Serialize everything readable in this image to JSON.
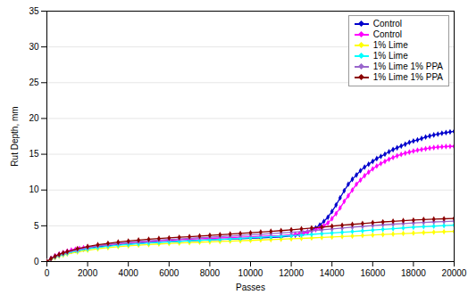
{
  "chart_data": {
    "type": "line",
    "xlabel": "Passes",
    "ylabel": "Rut Depth, mm",
    "xlim": [
      0,
      20000
    ],
    "ylim": [
      0,
      35
    ],
    "xticks": [
      0,
      2000,
      4000,
      6000,
      8000,
      10000,
      12000,
      14000,
      16000,
      18000,
      20000
    ],
    "yticks": [
      0,
      5,
      10,
      15,
      20,
      25,
      30,
      35
    ],
    "grid": "y",
    "legend": "upper right",
    "marker": "diamond",
    "series": [
      {
        "name": "Control",
        "color": "#0000cc",
        "x": [
          0,
          200,
          400,
          600,
          800,
          1000,
          1200,
          1400,
          1600,
          1800,
          2000,
          2500,
          3000,
          3500,
          4000,
          4500,
          5000,
          5500,
          6000,
          6500,
          7000,
          7500,
          8000,
          8500,
          9000,
          9500,
          10000,
          10500,
          11000,
          11500,
          12000,
          12200,
          12400,
          12600,
          12800,
          13000,
          13200,
          13400,
          13600,
          13800,
          14000,
          14200,
          14400,
          14600,
          14800,
          15000,
          15200,
          15400,
          15600,
          15800,
          16000,
          16200,
          16400,
          16600,
          16800,
          17000,
          17200,
          17400,
          17600,
          17800,
          18000,
          18200,
          18400,
          18600,
          18800,
          19000,
          19200,
          19400,
          19600,
          19800,
          20000
        ],
        "values": [
          0,
          0.4,
          0.7,
          0.9,
          1.1,
          1.3,
          1.45,
          1.55,
          1.65,
          1.75,
          1.85,
          2.05,
          2.2,
          2.35,
          2.45,
          2.55,
          2.65,
          2.72,
          2.79,
          2.85,
          2.91,
          2.97,
          3.03,
          3.09,
          3.15,
          3.2,
          3.26,
          3.32,
          3.38,
          3.44,
          3.6,
          3.7,
          3.8,
          3.95,
          4.15,
          4.4,
          4.7,
          5.1,
          5.6,
          6.2,
          7.0,
          7.9,
          8.9,
          9.9,
          10.8,
          11.5,
          12.1,
          12.7,
          13.2,
          13.6,
          14.0,
          14.4,
          14.7,
          15.0,
          15.35,
          15.65,
          15.9,
          16.15,
          16.4,
          16.65,
          16.85,
          17.0,
          17.2,
          17.4,
          17.55,
          17.7,
          17.82,
          17.93,
          18.03,
          18.12,
          18.2
        ]
      },
      {
        "name": "Control",
        "color": "#ff00ff",
        "x": [
          0,
          200,
          400,
          600,
          800,
          1000,
          1200,
          1400,
          1600,
          1800,
          2000,
          2500,
          3000,
          3500,
          4000,
          4500,
          5000,
          5500,
          6000,
          6500,
          7000,
          7500,
          8000,
          8500,
          9000,
          9500,
          10000,
          10500,
          11000,
          11500,
          12000,
          12200,
          12400,
          12600,
          12800,
          13000,
          13200,
          13400,
          13600,
          13800,
          14000,
          14200,
          14400,
          14600,
          14800,
          15000,
          15200,
          15400,
          15600,
          15800,
          16000,
          16200,
          16400,
          16600,
          16800,
          17000,
          17200,
          17400,
          17600,
          17800,
          18000,
          18200,
          18400,
          18600,
          18800,
          19000,
          19200,
          19400,
          19600,
          19800,
          20000
        ],
        "values": [
          0,
          0.45,
          0.8,
          1.05,
          1.25,
          1.45,
          1.6,
          1.72,
          1.82,
          1.92,
          2.02,
          2.22,
          2.38,
          2.52,
          2.63,
          2.74,
          2.83,
          2.91,
          2.99,
          3.06,
          3.12,
          3.18,
          3.24,
          3.3,
          3.36,
          3.42,
          3.48,
          3.53,
          3.58,
          3.63,
          3.75,
          3.82,
          3.9,
          4.0,
          4.12,
          4.27,
          4.45,
          4.68,
          5.0,
          5.4,
          6.0,
          6.7,
          7.5,
          8.4,
          9.2,
          10.0,
          10.8,
          11.4,
          12.0,
          12.5,
          12.95,
          13.35,
          13.7,
          14.0,
          14.3,
          14.55,
          14.78,
          14.98,
          15.15,
          15.3,
          15.44,
          15.56,
          15.67,
          15.77,
          15.86,
          15.93,
          15.99,
          16.04,
          16.08,
          16.1,
          16.1
        ]
      },
      {
        "name": "1% Lime",
        "color": "#ffff00",
        "x": [
          0,
          200,
          400,
          600,
          800,
          1000,
          1500,
          2000,
          2500,
          3000,
          3500,
          4000,
          4500,
          5000,
          5500,
          6000,
          6500,
          7000,
          7500,
          8000,
          8500,
          9000,
          9500,
          10000,
          10500,
          11000,
          11500,
          12000,
          12500,
          13000,
          13500,
          14000,
          14500,
          15000,
          15500,
          16000,
          16500,
          17000,
          17500,
          18000,
          18500,
          19000,
          19500,
          20000
        ],
        "values": [
          0,
          0.3,
          0.55,
          0.75,
          0.92,
          1.05,
          1.35,
          1.58,
          1.78,
          1.95,
          2.08,
          2.2,
          2.3,
          2.38,
          2.46,
          2.53,
          2.59,
          2.65,
          2.71,
          2.76,
          2.81,
          2.86,
          2.91,
          2.96,
          3.02,
          3.07,
          3.13,
          3.18,
          3.24,
          3.3,
          3.37,
          3.44,
          3.5,
          3.57,
          3.64,
          3.71,
          3.78,
          3.85,
          3.92,
          3.98,
          4.05,
          4.11,
          4.17,
          4.22
        ]
      },
      {
        "name": "1% Lime",
        "color": "#00ffff",
        "x": [
          0,
          200,
          400,
          600,
          800,
          1000,
          1500,
          2000,
          2500,
          3000,
          3500,
          4000,
          4500,
          5000,
          5500,
          6000,
          6500,
          7000,
          7500,
          8000,
          8500,
          9000,
          9500,
          10000,
          10500,
          11000,
          11500,
          12000,
          12500,
          13000,
          13500,
          14000,
          14500,
          15000,
          15500,
          16000,
          16500,
          17000,
          17500,
          18000,
          18500,
          19000,
          19500,
          20000
        ],
        "values": [
          0,
          0.35,
          0.62,
          0.84,
          1.02,
          1.17,
          1.5,
          1.76,
          1.97,
          2.14,
          2.28,
          2.4,
          2.5,
          2.59,
          2.68,
          2.76,
          2.83,
          2.9,
          2.97,
          3.04,
          3.11,
          3.18,
          3.25,
          3.33,
          3.4,
          3.47,
          3.55,
          3.62,
          3.7,
          3.8,
          3.9,
          4.0,
          4.1,
          4.2,
          4.3,
          4.4,
          4.5,
          4.6,
          4.7,
          4.8,
          4.88,
          4.95,
          5.02,
          5.1
        ]
      },
      {
        "name": "1% Lime 1% PPA",
        "color": "#9966cc",
        "x": [
          0,
          200,
          400,
          600,
          800,
          1000,
          1500,
          2000,
          2500,
          3000,
          3500,
          4000,
          4500,
          5000,
          5500,
          6000,
          6500,
          7000,
          7500,
          8000,
          8500,
          9000,
          9500,
          10000,
          10500,
          11000,
          11500,
          12000,
          12500,
          13000,
          13500,
          14000,
          14500,
          15000,
          15500,
          16000,
          16500,
          17000,
          17500,
          18000,
          18500,
          19000,
          19500,
          20000
        ],
        "values": [
          0,
          0.38,
          0.68,
          0.92,
          1.12,
          1.28,
          1.65,
          1.95,
          2.18,
          2.38,
          2.54,
          2.68,
          2.8,
          2.9,
          3.0,
          3.09,
          3.17,
          3.25,
          3.33,
          3.41,
          3.49,
          3.57,
          3.65,
          3.74,
          3.82,
          3.91,
          4.0,
          4.1,
          4.2,
          4.32,
          4.44,
          4.56,
          4.68,
          4.8,
          4.92,
          5.04,
          5.14,
          5.23,
          5.32,
          5.4,
          5.47,
          5.54,
          5.6,
          5.65
        ]
      },
      {
        "name": "1% Lime 1% PPA",
        "color": "#8b0000",
        "x": [
          0,
          200,
          400,
          600,
          800,
          1000,
          1500,
          2000,
          2500,
          3000,
          3500,
          4000,
          4500,
          5000,
          5500,
          6000,
          6500,
          7000,
          7500,
          8000,
          8500,
          9000,
          9500,
          10000,
          10500,
          11000,
          11500,
          12000,
          12500,
          13000,
          13500,
          14000,
          14500,
          15000,
          15500,
          16000,
          16500,
          17000,
          17500,
          18000,
          18500,
          19000,
          19500,
          20000
        ],
        "values": [
          0,
          0.42,
          0.75,
          1.0,
          1.22,
          1.4,
          1.8,
          2.1,
          2.35,
          2.55,
          2.72,
          2.87,
          3.0,
          3.12,
          3.22,
          3.31,
          3.4,
          3.48,
          3.57,
          3.66,
          3.75,
          3.84,
          3.93,
          4.02,
          4.12,
          4.22,
          4.33,
          4.45,
          4.57,
          4.69,
          4.82,
          4.95,
          5.08,
          5.2,
          5.32,
          5.44,
          5.54,
          5.63,
          5.72,
          5.8,
          5.87,
          5.93,
          5.98,
          6.03
        ]
      }
    ]
  }
}
